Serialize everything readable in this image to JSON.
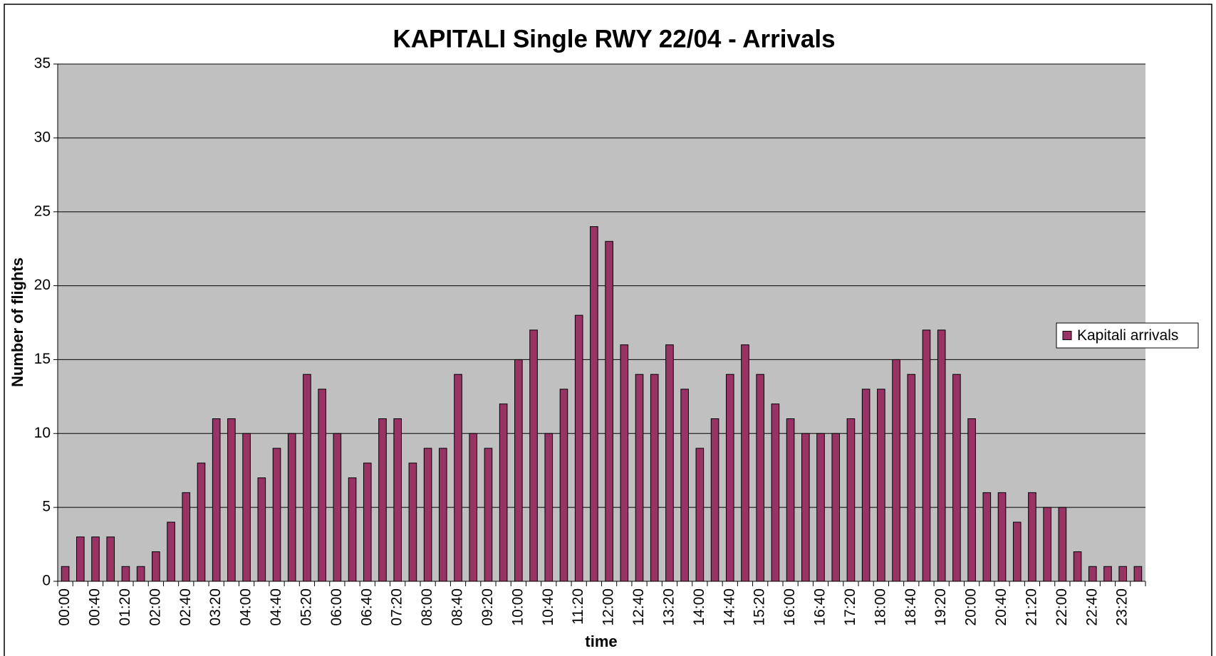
{
  "chart_data": {
    "type": "bar",
    "title": "KAPITALI Single RWY 22/04 - Arrivals",
    "x_label": "time",
    "y_label": "Number of flights",
    "categories": [
      "00:00",
      null,
      "00:40",
      null,
      "01:20",
      null,
      "02:00",
      null,
      "02:40",
      null,
      "03:20",
      null,
      "04:00",
      null,
      "04:40",
      null,
      "05:20",
      null,
      "06:00",
      null,
      "06:40",
      null,
      "07:20",
      null,
      "08:00",
      null,
      "08:40",
      null,
      "09:20",
      null,
      "10:00",
      null,
      "10:40",
      null,
      "11:20",
      null,
      "12:00",
      null,
      "12:40",
      null,
      "13:20",
      null,
      "14:00",
      null,
      "14:40",
      null,
      "15:20",
      null,
      "16:00",
      null,
      "16:40",
      null,
      "17:20",
      null,
      "18:00",
      null,
      "18:40",
      null,
      "19:20",
      null,
      "20:00",
      null,
      "20:40",
      null,
      "21:20",
      null,
      "22:00",
      null,
      "22:40",
      null,
      "23:20",
      null
    ],
    "series": [
      {
        "name": "Kapitali arrivals",
        "color": "#993366",
        "values": [
          1,
          3,
          3,
          3,
          1,
          1,
          2,
          4,
          6,
          8,
          11,
          11,
          10,
          7,
          9,
          10,
          14,
          13,
          10,
          7,
          8,
          11,
          11,
          8,
          9,
          9,
          14,
          10,
          9,
          12,
          15,
          17,
          10,
          13,
          18,
          24,
          23,
          16,
          14,
          14,
          16,
          13,
          9,
          11,
          14,
          16,
          14,
          12,
          11,
          10,
          10,
          10,
          11,
          13,
          13,
          15,
          14,
          17,
          17,
          14,
          11,
          6,
          6,
          4,
          6,
          5,
          5,
          2,
          1,
          1,
          1,
          1
        ]
      }
    ],
    "ylim": [
      0,
      35
    ],
    "yticks": [
      0,
      5,
      10,
      15,
      20,
      25,
      30,
      35
    ],
    "grid": true,
    "legend": "right"
  }
}
